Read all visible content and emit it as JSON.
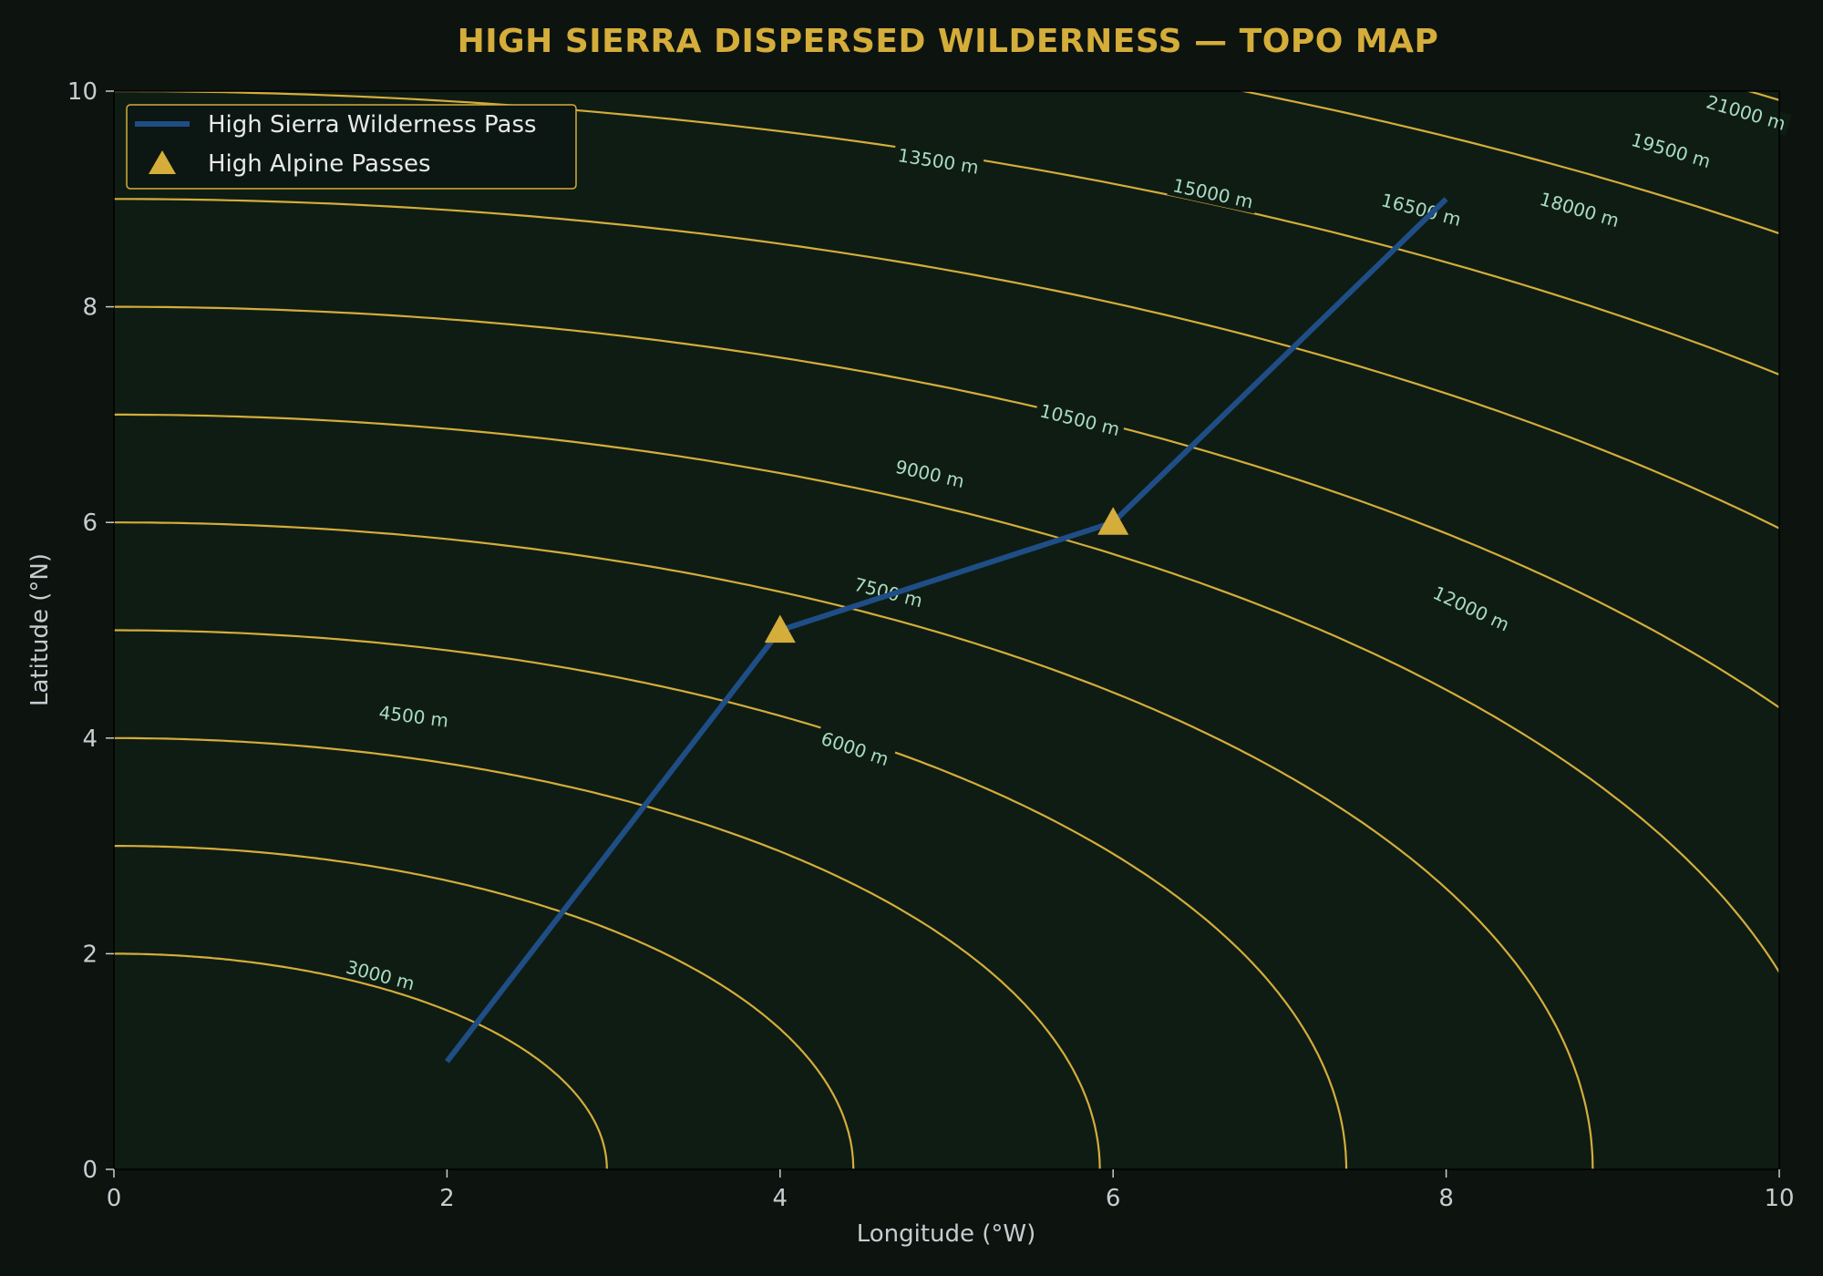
{
  "chart_data": {
    "type": "contour",
    "title": "HIGH SIERRA DISPERSED WILDERNESS — TOPO MAP",
    "xlabel": "Longitude (°W)",
    "ylabel": "Latitude (°N)",
    "xlim": [
      0,
      10
    ],
    "ylim": [
      0,
      10
    ],
    "xticks": [
      0,
      2,
      4,
      6,
      8,
      10
    ],
    "yticks": [
      0,
      2,
      4,
      6,
      8,
      10
    ],
    "grid": false,
    "legend_position": "top-left",
    "colors": {
      "background": "#0d130f",
      "plot_background": "#0f1c14",
      "contour": "#d4ad3a",
      "trail": "#1f4e86",
      "marker": "#d4ad3a",
      "title": "#d4ad3a",
      "contour_label": "#a8dcc0"
    },
    "contour_unit": "m",
    "contour_levels": [
      {
        "level": 3000,
        "label": "3000 m",
        "label_at": [
          1.6,
          1.8
        ],
        "show_label": true
      },
      {
        "level": 4500,
        "label": "4500 m",
        "label_at": [
          1.8,
          4.2
        ],
        "show_label": true
      },
      {
        "level": 6000,
        "label": "6000 m",
        "label_at": [
          4.45,
          3.9
        ],
        "show_label": true
      },
      {
        "level": 7500,
        "label": "7500 m",
        "label_at": [
          4.65,
          5.35
        ],
        "show_label": true
      },
      {
        "level": 9000,
        "label": "9000 m",
        "label_at": [
          4.9,
          6.45
        ],
        "show_label": true
      },
      {
        "level": 10500,
        "label": "10500 m",
        "label_at": [
          5.8,
          6.95
        ],
        "show_label": true
      },
      {
        "level": 12000,
        "label": "12000 m",
        "label_at": [
          8.15,
          5.2
        ],
        "show_label": true
      },
      {
        "level": 13500,
        "label": "13500 m",
        "label_at": [
          4.95,
          9.35
        ],
        "show_label": true
      },
      {
        "level": 15000,
        "label": "15000 m",
        "label_at": [
          6.6,
          9.05
        ],
        "show_label": true
      },
      {
        "level": 16500,
        "label": "16500 m",
        "label_at": [
          7.85,
          8.9
        ],
        "show_label": true
      },
      {
        "level": 18000,
        "label": "18000 m",
        "label_at": [
          8.8,
          8.9
        ],
        "show_label": true
      },
      {
        "level": 19500,
        "label": "19500 m",
        "label_at": [
          9.35,
          9.45
        ],
        "show_label": true
      },
      {
        "level": 21000,
        "label": "21000 m",
        "label_at": [
          9.8,
          9.8
        ],
        "show_label": true
      },
      {
        "level": 22500,
        "label": "",
        "show_label": false
      }
    ],
    "series": [
      {
        "name": "High Sierra Wilderness Pass",
        "type": "line",
        "x": [
          2,
          4,
          6,
          8
        ],
        "y": [
          1,
          5,
          6,
          9
        ]
      },
      {
        "name": "High Alpine Passes",
        "type": "scatter",
        "marker": "triangle",
        "x": [
          4,
          6
        ],
        "y": [
          5,
          6
        ]
      }
    ]
  }
}
